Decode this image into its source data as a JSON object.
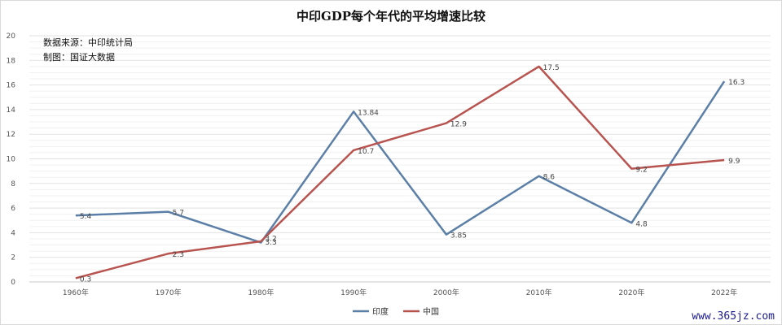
{
  "colors": {
    "india": "#5b7fa6",
    "china": "#b85450",
    "grid": "#e2e2e2",
    "axis": "#c8c8c8"
  },
  "notes": {
    "source": "数据来源：中印统计局",
    "maker": "制图：国证大数据"
  },
  "watermark": "www.365jz.com",
  "chart_data": {
    "type": "line",
    "title": "中印GDP每个年代的平均增速比较",
    "xlabel": "",
    "ylabel": "",
    "categories": [
      "1960年",
      "1970年",
      "1980年",
      "1990年",
      "2000年",
      "2010年",
      "2020年",
      "2022年"
    ],
    "ylim": [
      0,
      20
    ],
    "yticks": [
      0,
      2,
      4,
      6,
      8,
      10,
      12,
      14,
      16,
      18,
      20
    ],
    "yticks_text": [
      "0",
      "2",
      "4",
      "6",
      "8",
      "10",
      "12",
      "14",
      "16",
      "18",
      "20"
    ],
    "grid": true,
    "legend_position": "bottom",
    "series": [
      {
        "name": "印度",
        "key": "india",
        "values": [
          5.4,
          5.7,
          3.2,
          13.84,
          3.85,
          8.6,
          4.8,
          16.3
        ],
        "labels": [
          "5.4",
          "5.7",
          "3.2",
          "13.84",
          "3.85",
          "8.6",
          "4.8",
          "16.3"
        ]
      },
      {
        "name": "中国",
        "key": "china",
        "values": [
          0.3,
          2.3,
          3.3,
          10.7,
          12.9,
          17.5,
          9.2,
          9.9
        ],
        "labels": [
          "0.3",
          "2.3",
          "3.3",
          "10.7",
          "12.9",
          "17.5",
          "9.2",
          "9.9"
        ]
      }
    ]
  }
}
